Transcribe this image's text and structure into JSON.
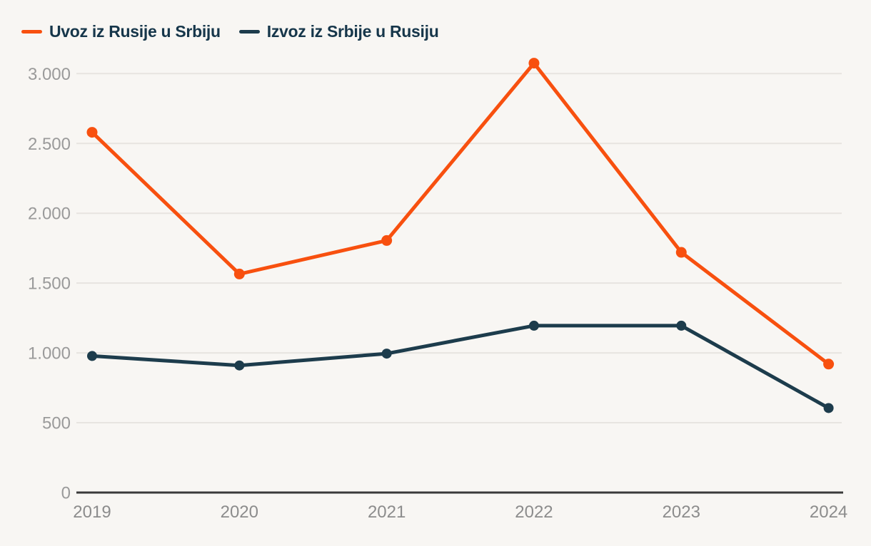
{
  "page": {
    "background_color": "#f8f6f3",
    "gridline_color": "#e7e4e0",
    "axis_line_color": "#3a3a3a",
    "y_tick_color": "#9a9a9a",
    "x_tick_color": "#8c8c8c",
    "legend_text_color": "#16364a"
  },
  "legend": {
    "items": [
      {
        "label": "Uvoz iz Rusije u Srbiju",
        "color": "#f8500f",
        "swatch": "line-swatch"
      },
      {
        "label": "Izvoz iz Srbije u Rusiju",
        "color": "#1d3c4c",
        "swatch": "line-swatch"
      }
    ]
  },
  "chart_data": {
    "type": "line",
    "title": "",
    "xlabel": "",
    "ylabel": "",
    "categories": [
      "2019",
      "2020",
      "2021",
      "2022",
      "2023",
      "2024"
    ],
    "series": [
      {
        "name": "Uvoz iz Rusije u Srbiju",
        "color": "#f8500f",
        "values": [
          2580,
          1565,
          1805,
          3075,
          1720,
          920
        ]
      },
      {
        "name": "Izvoz iz Srbije u Rusiju",
        "color": "#1d3c4c",
        "values": [
          978,
          910,
          995,
          1195,
          1195,
          605
        ]
      }
    ],
    "y_ticks": [
      {
        "value": 0,
        "label": "0"
      },
      {
        "value": 500,
        "label": "500"
      },
      {
        "value": 1000,
        "label": "1.000"
      },
      {
        "value": 1500,
        "label": "1.500"
      },
      {
        "value": 2000,
        "label": "2.000"
      },
      {
        "value": 2500,
        "label": "2.500"
      },
      {
        "value": 3000,
        "label": "3.000"
      }
    ],
    "ylim": [
      0,
      3200
    ],
    "grid": true,
    "markers": true,
    "legend_position": "top-left"
  }
}
